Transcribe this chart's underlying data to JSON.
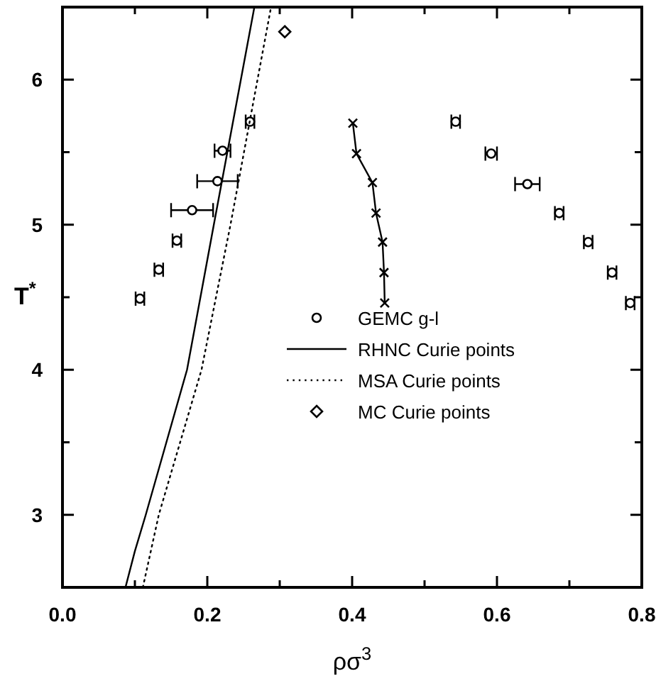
{
  "chart_data": {
    "type": "line",
    "xlabel": "ρσ$^{3}$",
    "ylabel": "T$^{*}$",
    "xlim": [
      0,
      0.8
    ],
    "ylim": [
      2.5,
      6.5
    ],
    "xticks": [
      {
        "value": 0,
        "label": "0.0"
      },
      {
        "value": 0.1,
        "label": null
      },
      {
        "value": 0.2,
        "label": "0.2"
      },
      {
        "value": 0.3,
        "label": null
      },
      {
        "value": 0.4,
        "label": "0.4"
      },
      {
        "value": 0.5,
        "label": null
      },
      {
        "value": 0.6,
        "label": "0.6"
      },
      {
        "value": 0.7,
        "label": null
      },
      {
        "value": 0.8,
        "label": "0.8"
      }
    ],
    "yticks": [
      {
        "value": 2.5,
        "label": null
      },
      3,
      {
        "value": 3.5,
        "label": null
      },
      4,
      {
        "value": 4.5,
        "label": null
      },
      5,
      {
        "value": 5.5,
        "label": null
      },
      6
    ],
    "grid": false,
    "legend": "bottom right",
    "series": [
      {
        "name": "GEMC g-l",
        "type": "scatter",
        "marker": "circle",
        "color": "#000000",
        "x": [
          0.107,
          0.133,
          0.158,
          0.179,
          0.214,
          0.221,
          0.259,
          0.543,
          0.592,
          0.642,
          0.686,
          0.726,
          0.759,
          0.784
        ],
        "values": [
          4.49,
          4.69,
          4.89,
          5.1,
          5.3,
          5.51,
          5.71,
          5.71,
          5.49,
          5.28,
          5.08,
          4.88,
          4.67,
          4.46
        ],
        "xerrors": [
          0.006,
          0.006,
          0.006,
          0.029,
          0.028,
          0.011,
          0.006,
          0.006,
          0.008,
          0.017,
          0.006,
          0.006,
          0.006,
          0.006
        ]
      },
      {
        "marker": "cross",
        "line_style": "solid",
        "color": "#000000",
        "x": [
          0.401,
          0.406,
          0.428,
          0.433,
          0.442,
          0.444,
          0.445
        ],
        "values": [
          5.7,
          5.49,
          5.29,
          5.08,
          4.88,
          4.67,
          4.46
        ]
      },
      {
        "name": "RHNC Curie points",
        "marker": "none",
        "line_style": "solid",
        "color": "#000000",
        "x": [
          0.087,
          0.1,
          0.115,
          0.172,
          0.209,
          0.265
        ],
        "values": [
          2.5,
          2.75,
          3,
          4,
          5,
          6.5
        ]
      },
      {
        "name": "MSA Curie points",
        "marker": "none",
        "line_style": "dotted",
        "color": "#000000",
        "x": [
          0.111,
          0.133,
          0.192,
          0.232,
          0.288
        ],
        "values": [
          2.5,
          3,
          4,
          5,
          6.5
        ]
      },
      {
        "name": "MC Curie points",
        "type": "scatter",
        "marker": "diamond",
        "color": "#000000",
        "x": [
          0.307
        ],
        "values": [
          6.33
        ]
      }
    ]
  }
}
